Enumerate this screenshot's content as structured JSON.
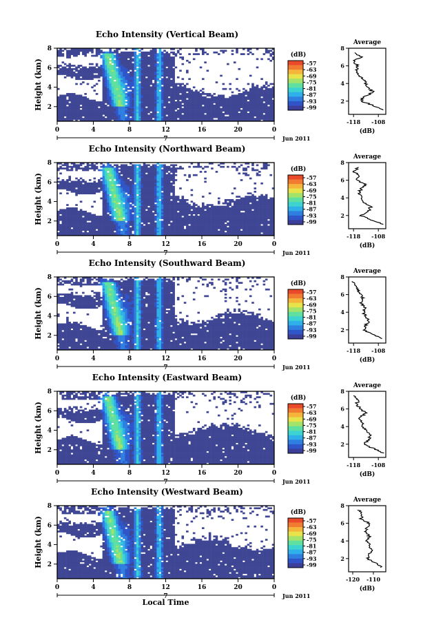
{
  "figure": {
    "xlabel": "Local Time",
    "date_label": "Jun 2011",
    "day_label": "7",
    "colorbar_unit": "(dB)",
    "colorbar_ticks": [
      "-57",
      "-63",
      "-69",
      "-75",
      "-81",
      "-87",
      "-93",
      "-99"
    ],
    "colorbar_colors": [
      "#3b3f99",
      "#2f55c8",
      "#2f7fe0",
      "#2fb0e8",
      "#3dd3d0",
      "#5fe0a0",
      "#a4e36a",
      "#e8e34a",
      "#f5b43a",
      "#f27b32",
      "#e84a2a"
    ],
    "white_color": "#ffffff",
    "navy_color": "#3f4694"
  },
  "chart_data": [
    {
      "type": "heatmap",
      "title": "Echo Intensity (Vertical Beam)",
      "ylabel": "Height (km)",
      "x_ticks": [
        "0",
        "4",
        "8",
        "12",
        "16",
        "20",
        "0"
      ],
      "xlim": [
        0,
        24
      ],
      "y_ticks": [
        "2",
        "4",
        "6",
        "8"
      ],
      "ylim": [
        0.5,
        8
      ],
      "colorbar_range": [
        -99,
        -57
      ],
      "profile": {
        "title": "Average",
        "xlabel": "(dB)",
        "x_ticks": [
          "-118",
          "-108"
        ],
        "xlim": [
          -120,
          -105
        ],
        "ylim": [
          0.5,
          8
        ],
        "y_ticks": [
          "2",
          "4",
          "6",
          "8"
        ],
        "heights": [
          1,
          1.5,
          2,
          2.5,
          3,
          3.5,
          4,
          4.5,
          5,
          5.5,
          6,
          6.5,
          7,
          7.5,
          8
        ],
        "values": [
          -106,
          -110,
          -115,
          -114,
          -110,
          -112,
          -113,
          -114,
          -116,
          -117,
          -116,
          -118,
          -115,
          -117,
          -116
        ]
      }
    },
    {
      "type": "heatmap",
      "title": "Echo Intensity (Northward Beam)",
      "ylabel": "Height (km)",
      "x_ticks": [
        "0",
        "4",
        "8",
        "12",
        "16",
        "20",
        "0"
      ],
      "xlim": [
        0,
        24
      ],
      "y_ticks": [
        "2",
        "4",
        "6",
        "8"
      ],
      "ylim": [
        0.5,
        8
      ],
      "colorbar_range": [
        -99,
        -57
      ],
      "profile": {
        "title": "Average",
        "xlabel": "(dB)",
        "x_ticks": [
          "-118",
          "-108"
        ],
        "xlim": [
          -120,
          -105
        ],
        "ylim": [
          0.5,
          8
        ],
        "y_ticks": [
          "2",
          "4",
          "6",
          "8"
        ],
        "heights": [
          1,
          1.5,
          2,
          2.5,
          3,
          3.5,
          4,
          4.5,
          5,
          5.5,
          6,
          6.5,
          7,
          7.5,
          8
        ],
        "values": [
          -106,
          -111,
          -115,
          -112,
          -111,
          -114,
          -115,
          -116,
          -115,
          -113,
          -117,
          -116,
          -118,
          -116,
          -117
        ]
      }
    },
    {
      "type": "heatmap",
      "title": "Echo Intensity (Southward Beam)",
      "ylabel": "Height (km)",
      "x_ticks": [
        "0",
        "4",
        "8",
        "12",
        "16",
        "20",
        "0"
      ],
      "xlim": [
        0,
        24
      ],
      "y_ticks": [
        "2",
        "4",
        "6",
        "8"
      ],
      "ylim": [
        0.5,
        8
      ],
      "colorbar_range": [
        -99,
        -57
      ],
      "profile": {
        "title": "Average",
        "xlabel": "(dB)",
        "x_ticks": [
          "-118",
          "-108"
        ],
        "xlim": [
          -120,
          -105
        ],
        "ylim": [
          0.5,
          8
        ],
        "y_ticks": [
          "2",
          "4",
          "6",
          "8"
        ],
        "heights": [
          1,
          1.5,
          2,
          2.5,
          3,
          3.5,
          4,
          4.5,
          5,
          5.5,
          6,
          6.5,
          7,
          7.5,
          8
        ],
        "values": [
          -106,
          -110,
          -114,
          -113,
          -112,
          -113,
          -114,
          -113,
          -115,
          -114,
          -115,
          -116,
          -117,
          -118,
          -118
        ]
      }
    },
    {
      "type": "heatmap",
      "title": "Echo Intensity (Eastward Beam)",
      "ylabel": "Height (km)",
      "x_ticks": [
        "0",
        "4",
        "8",
        "12",
        "16",
        "20",
        "0"
      ],
      "xlim": [
        0,
        24
      ],
      "y_ticks": [
        "2",
        "4",
        "6",
        "8"
      ],
      "ylim": [
        0.5,
        8
      ],
      "colorbar_range": [
        -99,
        -57
      ],
      "profile": {
        "title": "Average",
        "xlabel": "(dB)",
        "x_ticks": [
          "-118",
          "-108"
        ],
        "xlim": [
          -120,
          -105
        ],
        "ylim": [
          0.5,
          8
        ],
        "y_ticks": [
          "2",
          "4",
          "6",
          "8"
        ],
        "heights": [
          1,
          1.5,
          2,
          2.5,
          3,
          3.5,
          4,
          4.5,
          5,
          5.5,
          6,
          6.5,
          7,
          7.5,
          8
        ],
        "values": [
          -106,
          -110,
          -114,
          -112,
          -111,
          -113,
          -114,
          -115,
          -116,
          -113,
          -115,
          -117,
          -116,
          -118,
          -117
        ]
      }
    },
    {
      "type": "heatmap",
      "title": "Echo Intensity (Westward Beam)",
      "ylabel": "Height (km)",
      "x_ticks": [
        "0",
        "4",
        "8",
        "12",
        "16",
        "20",
        "0"
      ],
      "xlim": [
        0,
        24
      ],
      "y_ticks": [
        "2",
        "4",
        "6",
        "8"
      ],
      "ylim": [
        0.5,
        8
      ],
      "colorbar_range": [
        -99,
        -57
      ],
      "profile": {
        "title": "Average",
        "xlabel": "(dB)",
        "x_ticks": [
          "-120",
          "-110"
        ],
        "xlim": [
          -122,
          -104
        ],
        "ylim": [
          0.5,
          8
        ],
        "y_ticks": [
          "2",
          "4",
          "6",
          "8"
        ],
        "heights": [
          1,
          1.5,
          2,
          2.5,
          3,
          3.5,
          4,
          4.5,
          5,
          5.5,
          6,
          6.5,
          7,
          7.5,
          8
        ],
        "values": [
          -106,
          -109,
          -113,
          -112,
          -111,
          -112,
          -113,
          -112,
          -114,
          -113,
          -112,
          -116,
          -115,
          -117,
          -118
        ]
      }
    }
  ]
}
